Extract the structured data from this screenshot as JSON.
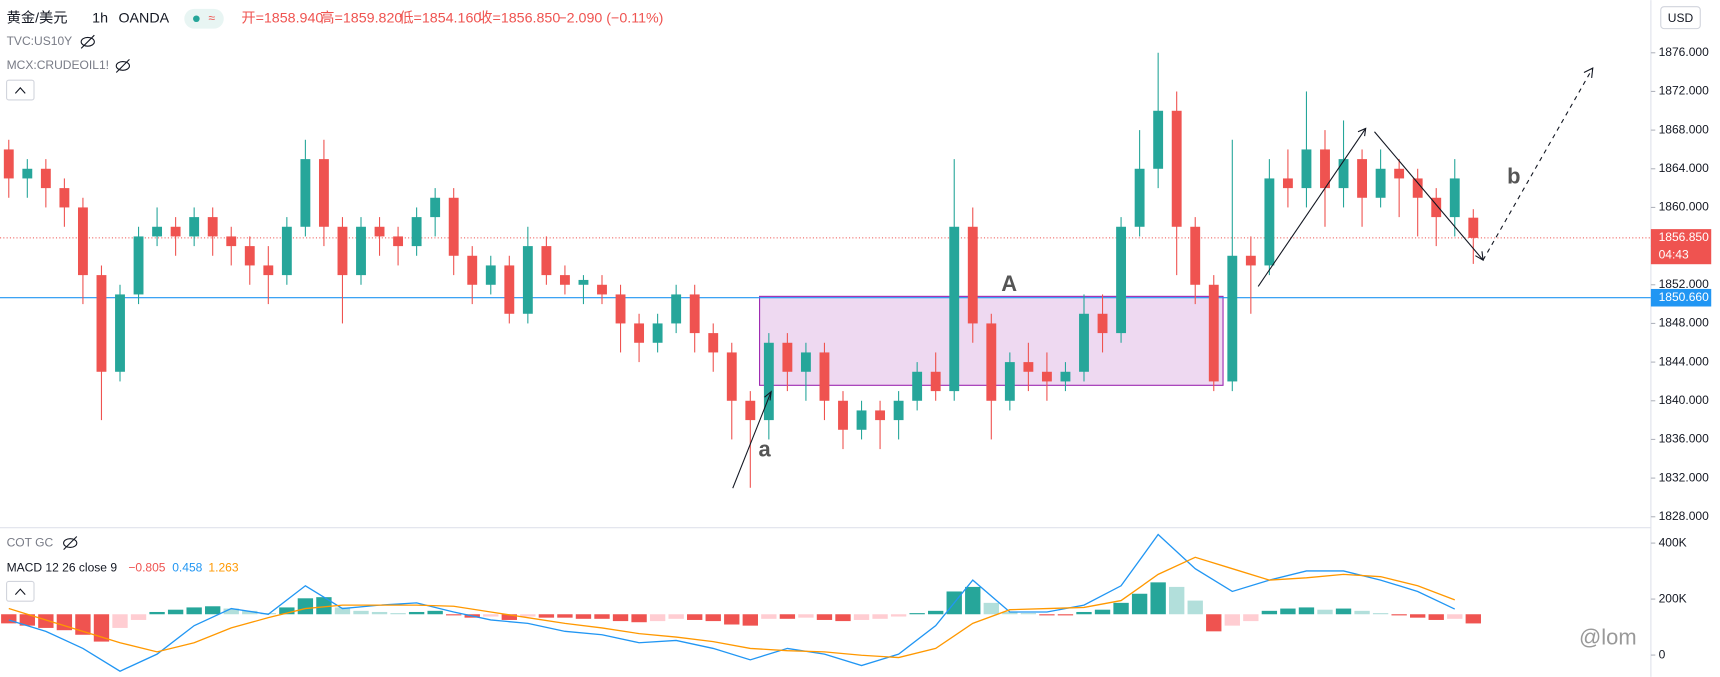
{
  "chart_data": {
    "type": "candlestick",
    "header": {
      "symbol": "黄金/美元",
      "interval": "1h",
      "exchange": "OANDA",
      "open": "开=1858.940",
      "high": "高=1859.820",
      "low": "低=1854.160",
      "close": "收=1856.850",
      "change": "−2.090 (−0.11%)"
    },
    "overlays": [
      "TVC:US10Y",
      "MCX:CRUDEOIL1!"
    ],
    "currency": "USD",
    "up_color": "#26a69a",
    "down_color": "#ef5350",
    "ohlc": [
      [
        1866,
        1867,
        1861,
        1863
      ],
      [
        1863,
        1865,
        1861,
        1864
      ],
      [
        1864,
        1865,
        1860,
        1862
      ],
      [
        1862,
        1863,
        1858,
        1860
      ],
      [
        1860,
        1861,
        1850,
        1853
      ],
      [
        1853,
        1854,
        1838,
        1843
      ],
      [
        1843,
        1852,
        1842,
        1851
      ],
      [
        1851,
        1858,
        1850,
        1857
      ],
      [
        1857,
        1860,
        1856,
        1858
      ],
      [
        1858,
        1859,
        1855,
        1857
      ],
      [
        1857,
        1860,
        1856,
        1859
      ],
      [
        1859,
        1860,
        1855,
        1857
      ],
      [
        1857,
        1858,
        1854,
        1856
      ],
      [
        1856,
        1857,
        1852,
        1854
      ],
      [
        1854,
        1856,
        1850,
        1853
      ],
      [
        1853,
        1859,
        1852,
        1858
      ],
      [
        1858,
        1867,
        1857,
        1865
      ],
      [
        1865,
        1867,
        1856,
        1858
      ],
      [
        1858,
        1859,
        1848,
        1853
      ],
      [
        1853,
        1859,
        1852,
        1858
      ],
      [
        1858,
        1859,
        1855,
        1857
      ],
      [
        1857,
        1858,
        1854,
        1856
      ],
      [
        1856,
        1860,
        1855,
        1859
      ],
      [
        1859,
        1862,
        1857,
        1861
      ],
      [
        1861,
        1862,
        1853,
        1855
      ],
      [
        1855,
        1856,
        1850,
        1852
      ],
      [
        1852,
        1855,
        1851,
        1854
      ],
      [
        1854,
        1855,
        1848,
        1849
      ],
      [
        1849,
        1858,
        1848,
        1856
      ],
      [
        1856,
        1857,
        1852,
        1853
      ],
      [
        1853,
        1854,
        1851,
        1852
      ],
      [
        1852,
        1853,
        1850,
        1852.5
      ],
      [
        1852,
        1853,
        1850,
        1851
      ],
      [
        1851,
        1852,
        1845,
        1848
      ],
      [
        1848,
        1849,
        1844,
        1846
      ],
      [
        1846,
        1849,
        1845,
        1848
      ],
      [
        1848,
        1852,
        1847,
        1851
      ],
      [
        1851,
        1852,
        1845,
        1847
      ],
      [
        1847,
        1848,
        1843,
        1845
      ],
      [
        1845,
        1846,
        1836,
        1840
      ],
      [
        1840,
        1841,
        1831,
        1838
      ],
      [
        1838,
        1847,
        1836,
        1846
      ],
      [
        1846,
        1847,
        1841,
        1843
      ],
      [
        1843,
        1846,
        1840,
        1845
      ],
      [
        1845,
        1846,
        1838,
        1840
      ],
      [
        1840,
        1841,
        1835,
        1837
      ],
      [
        1837,
        1840,
        1836,
        1839
      ],
      [
        1839,
        1840,
        1835,
        1838
      ],
      [
        1838,
        1841,
        1836,
        1840
      ],
      [
        1840,
        1844,
        1839,
        1843
      ],
      [
        1843,
        1845,
        1840,
        1841
      ],
      [
        1841,
        1865,
        1840,
        1858
      ],
      [
        1858,
        1860,
        1846,
        1848
      ],
      [
        1848,
        1849,
        1836,
        1840
      ],
      [
        1840,
        1845,
        1839,
        1844
      ],
      [
        1844,
        1846,
        1841,
        1843
      ],
      [
        1843,
        1845,
        1840,
        1842
      ],
      [
        1842,
        1844,
        1841,
        1843
      ],
      [
        1843,
        1851,
        1842,
        1849
      ],
      [
        1849,
        1851,
        1845,
        1847
      ],
      [
        1847,
        1859,
        1846,
        1858
      ],
      [
        1858,
        1868,
        1857,
        1864
      ],
      [
        1864,
        1876,
        1862,
        1870
      ],
      [
        1870,
        1872,
        1853,
        1858
      ],
      [
        1858,
        1859,
        1850,
        1852
      ],
      [
        1852,
        1853,
        1841,
        1842
      ],
      [
        1842,
        1867,
        1841,
        1855
      ],
      [
        1855,
        1857,
        1849,
        1854
      ],
      [
        1854,
        1865,
        1853,
        1863
      ],
      [
        1863,
        1866,
        1860,
        1862
      ],
      [
        1862,
        1872,
        1860,
        1866
      ],
      [
        1866,
        1868,
        1858,
        1862
      ],
      [
        1862,
        1869,
        1860,
        1865
      ],
      [
        1865,
        1866,
        1858,
        1861
      ],
      [
        1861,
        1866,
        1860,
        1864
      ],
      [
        1864,
        1865,
        1859,
        1863
      ],
      [
        1863,
        1864,
        1857,
        1861
      ],
      [
        1861,
        1862,
        1856,
        1859
      ],
      [
        1859,
        1865,
        1857,
        1863
      ],
      [
        1858.94,
        1859.82,
        1854.16,
        1856.85
      ]
    ],
    "ylim": [
      1826.98,
      1881.45
    ],
    "yticks": [
      {
        "value": 1828,
        "label": "1828.000"
      },
      {
        "value": 1832,
        "label": "1832.000"
      },
      {
        "value": 1836,
        "label": "1836.000"
      },
      {
        "value": 1840,
        "label": "1840.000"
      },
      {
        "value": 1844,
        "label": "1844.000"
      },
      {
        "value": 1848,
        "label": "1848.000"
      },
      {
        "value": 1852,
        "label": "1852.000"
      },
      {
        "value": 1856,
        "label": "1856.000"
      },
      {
        "value": 1860,
        "label": "1860.000"
      },
      {
        "value": 1864,
        "label": "1864.000"
      },
      {
        "value": 1868,
        "label": "1868.000"
      },
      {
        "value": 1872,
        "label": "1872.000"
      },
      {
        "value": 1876,
        "label": "1876.000"
      }
    ],
    "grid": false,
    "last_price": {
      "value": 1856.85,
      "label": "1856.850"
    },
    "countdown": "04:43",
    "hline": {
      "value": 1850.66,
      "label": "1850.660",
      "color": "#2196f3"
    },
    "zone": {
      "top": 1850.8,
      "bottom": 1841.6,
      "start": 40.5,
      "end": 65.5
    },
    "annotations": [
      "A",
      "a",
      "b"
    ],
    "indicators": [
      "COT GC"
    ],
    "macd": {
      "label": "MACD 12 26 close 9",
      "hist_label": "−0.805",
      "macd_label": "0.458",
      "signal_label": "1.263",
      "ylim": [
        -5.5,
        7.5
      ],
      "hist": [
        -0.8,
        -1,
        -1.2,
        -1.4,
        -1.8,
        -2.4,
        -1.2,
        -0.5,
        0.2,
        0.4,
        0.6,
        0.7,
        0.5,
        0.3,
        0.1,
        0.6,
        1.4,
        1.5,
        0.6,
        0.3,
        0.2,
        0.1,
        0.2,
        0.3,
        -0.1,
        -0.3,
        -0.2,
        -0.5,
        -0.2,
        -0.3,
        -0.3,
        -0.4,
        -0.4,
        -0.6,
        -0.7,
        -0.6,
        -0.4,
        -0.5,
        -0.6,
        -0.9,
        -1.0,
        -0.4,
        -0.4,
        -0.3,
        -0.5,
        -0.6,
        -0.5,
        -0.4,
        -0.2,
        0.1,
        0.3,
        2.0,
        2.4,
        1.0,
        0.2,
        0.1,
        -0.1,
        -0.1,
        0.2,
        0.4,
        1.0,
        1.8,
        2.8,
        2.4,
        1.2,
        -1.5,
        -1.0,
        -0.6,
        0.3,
        0.5,
        0.6,
        0.4,
        0.5,
        0.3,
        0.1,
        -0.1,
        -0.3,
        -0.5,
        -0.4,
        -0.805
      ],
      "x": [
        0,
        2,
        4,
        6,
        8,
        10,
        12,
        14,
        16,
        18,
        20,
        22,
        24,
        26,
        28,
        30,
        32,
        34,
        36,
        38,
        40,
        42,
        44,
        46,
        48,
        50,
        52,
        54,
        56,
        58,
        60,
        62,
        64,
        66,
        68,
        70,
        72,
        74,
        76,
        78
      ],
      "macd_line": [
        -0.5,
        -1.5,
        -3,
        -5,
        -3.5,
        -1,
        0.5,
        0,
        2.5,
        0.5,
        0.8,
        1,
        0.2,
        -0.5,
        -0.8,
        -1.5,
        -1.8,
        -2.5,
        -2.3,
        -3,
        -4,
        -3,
        -3.5,
        -4.5,
        -3.5,
        -1,
        3,
        0.2,
        0.2,
        0.8,
        2.5,
        7,
        4,
        2,
        3,
        3.8,
        3.8,
        3,
        2,
        0.458
      ],
      "signal_line": [
        0.5,
        -0.5,
        -1.5,
        -2.5,
        -3.3,
        -2.5,
        -1.2,
        -0.3,
        0.5,
        0.8,
        0.8,
        0.8,
        0.7,
        0.2,
        -0.3,
        -0.8,
        -1.2,
        -1.7,
        -2,
        -2.4,
        -3,
        -3.2,
        -3.3,
        -3.6,
        -3.8,
        -3,
        -0.8,
        0.4,
        0.5,
        0.6,
        1.2,
        3.5,
        5,
        4,
        3,
        3.2,
        3.5,
        3.3,
        2.5,
        1.263
      ],
      "macd_color": "#2196f3",
      "signal_color": "#ff9800"
    },
    "y2lim": [
      -78000,
      451000
    ],
    "y2ticks": [
      {
        "value": 400000,
        "label": "400K"
      },
      {
        "value": 200000,
        "label": "200K"
      },
      0
    ],
    "watermark": "@lom"
  }
}
